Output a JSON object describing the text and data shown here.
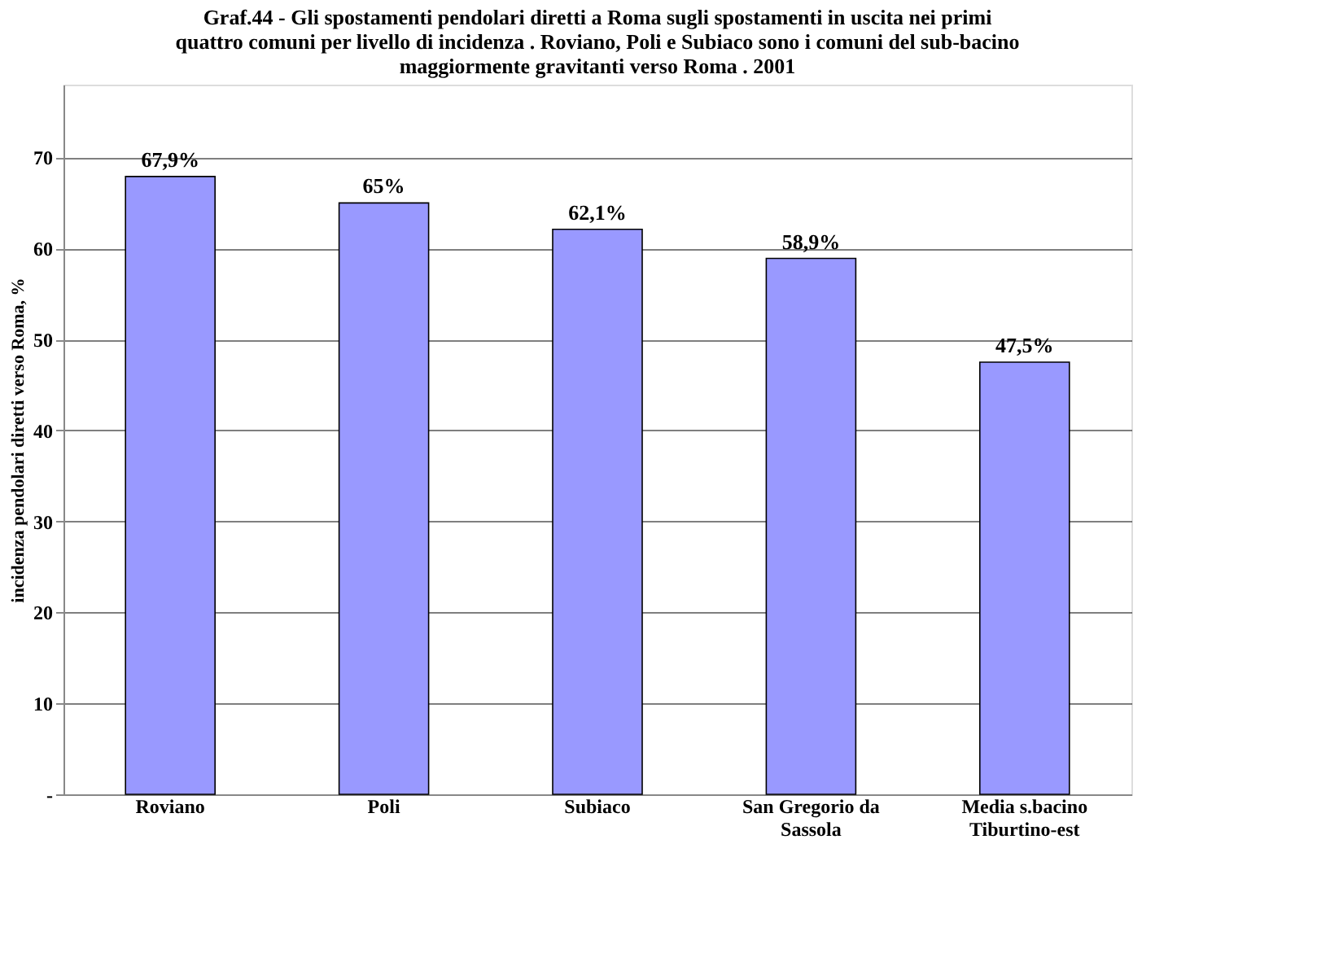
{
  "chart_data": {
    "type": "bar",
    "title": "Graf.44 - Gli spostamenti pendolari diretti a Roma sugli spostamenti in uscita nei primi quattro comuni per livello di incidenza . Roviano, Poli e Subiaco sono i comuni del sub-bacino maggiormente gravitanti verso Roma . 2001",
    "ylabel": "incidenza pendolari diretti verso Roma, %",
    "categories": [
      "Roviano",
      "Poli",
      "Subiaco",
      "San Gregorio da Sassola",
      "Media s.bacino Tiburtino-est"
    ],
    "values": [
      67.9,
      65,
      62.1,
      58.9,
      47.5
    ],
    "value_labels": [
      "67,9%",
      "65%",
      "62,1%",
      "58,9%",
      "47,5%"
    ],
    "color": "#9999ff",
    "ylim": [
      0,
      78
    ],
    "yticks": [
      {
        "value": 0,
        "label": "-"
      },
      10,
      20,
      30,
      40,
      50,
      60,
      70
    ],
    "grid": "y"
  }
}
